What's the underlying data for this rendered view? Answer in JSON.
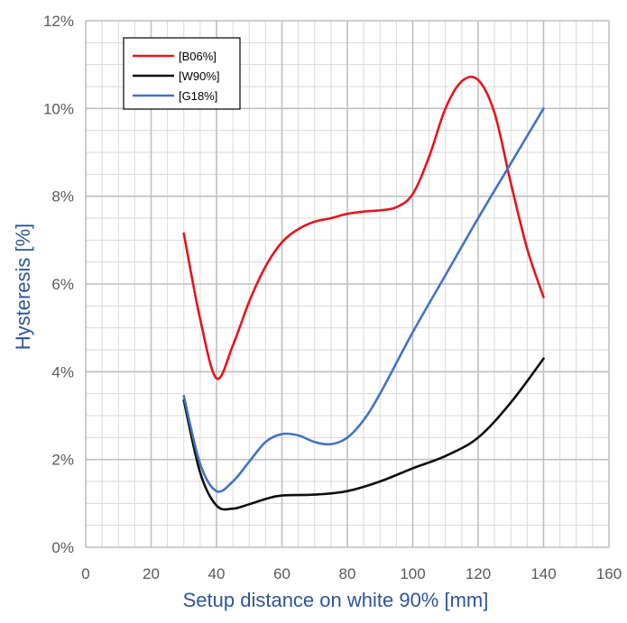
{
  "chart_data": {
    "type": "line",
    "title": "",
    "xlabel": "Setup distance on white 90% [mm]",
    "ylabel": "Hysteresis [%]",
    "xlim": [
      0,
      160
    ],
    "ylim": [
      0,
      12
    ],
    "x_ticks": [
      "0",
      "20",
      "40",
      "60",
      "80",
      "100",
      "120",
      "140",
      "160"
    ],
    "y_ticks": [
      "0%",
      "2%",
      "4%",
      "6%",
      "8%",
      "10%",
      "12%"
    ],
    "x_tick_values": [
      0,
      20,
      40,
      60,
      80,
      100,
      120,
      140,
      160
    ],
    "y_tick_values": [
      0,
      2,
      4,
      6,
      8,
      10,
      12
    ],
    "minor_x_step": 5,
    "minor_y_step": 0.5,
    "grid": true,
    "legend_position": "top-left",
    "series": [
      {
        "name": "[B06%]",
        "color": "#e8141b",
        "points": [
          [
            30,
            7.15
          ],
          [
            35,
            5.2
          ],
          [
            40,
            3.85
          ],
          [
            45,
            4.6
          ],
          [
            50,
            5.6
          ],
          [
            55,
            6.4
          ],
          [
            60,
            6.95
          ],
          [
            65,
            7.25
          ],
          [
            70,
            7.42
          ],
          [
            75,
            7.5
          ],
          [
            80,
            7.6
          ],
          [
            85,
            7.65
          ],
          [
            90,
            7.68
          ],
          [
            95,
            7.75
          ],
          [
            100,
            8.05
          ],
          [
            105,
            8.9
          ],
          [
            110,
            10.0
          ],
          [
            115,
            10.62
          ],
          [
            120,
            10.65
          ],
          [
            125,
            9.9
          ],
          [
            130,
            8.3
          ],
          [
            135,
            6.8
          ],
          [
            140,
            5.7
          ]
        ]
      },
      {
        "name": "[W90%]",
        "color": "#0d0d0d",
        "points": [
          [
            30,
            3.35
          ],
          [
            35,
            1.7
          ],
          [
            40,
            0.95
          ],
          [
            45,
            0.88
          ],
          [
            50,
            0.98
          ],
          [
            55,
            1.1
          ],
          [
            60,
            1.18
          ],
          [
            70,
            1.2
          ],
          [
            80,
            1.28
          ],
          [
            90,
            1.5
          ],
          [
            100,
            1.8
          ],
          [
            110,
            2.08
          ],
          [
            120,
            2.5
          ],
          [
            130,
            3.3
          ],
          [
            140,
            4.3
          ]
        ]
      },
      {
        "name": "[G18%]",
        "color": "#4472c4",
        "points": [
          [
            30,
            3.45
          ],
          [
            35,
            1.9
          ],
          [
            40,
            1.28
          ],
          [
            45,
            1.5
          ],
          [
            50,
            1.95
          ],
          [
            55,
            2.4
          ],
          [
            60,
            2.58
          ],
          [
            65,
            2.55
          ],
          [
            70,
            2.4
          ],
          [
            75,
            2.35
          ],
          [
            80,
            2.5
          ],
          [
            85,
            2.9
          ],
          [
            90,
            3.5
          ],
          [
            100,
            4.9
          ],
          [
            110,
            6.2
          ],
          [
            120,
            7.5
          ],
          [
            130,
            8.75
          ],
          [
            140,
            10.0
          ]
        ]
      }
    ]
  }
}
